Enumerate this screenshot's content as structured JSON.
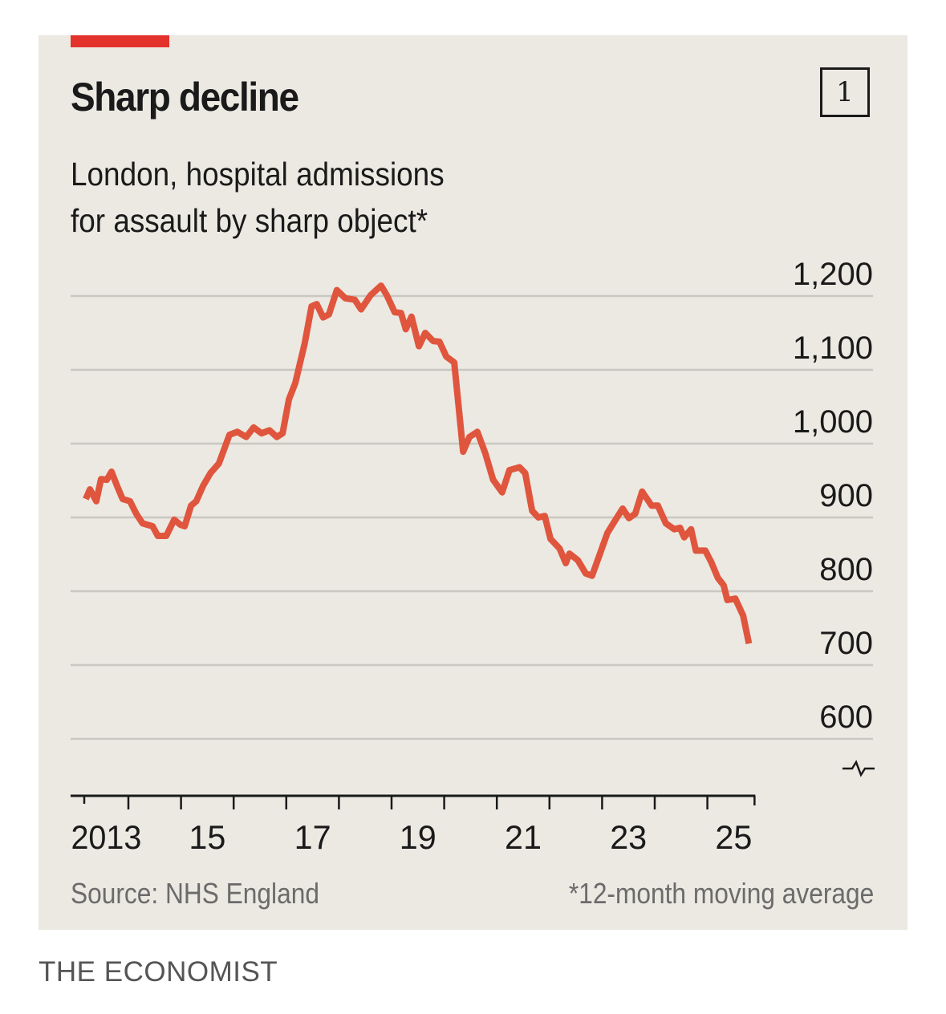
{
  "header": {
    "title": "Sharp decline",
    "subtitle_line1": "London, hospital admissions",
    "subtitle_line2": "for assault by sharp object*",
    "chart_number": "1"
  },
  "footer": {
    "source": "Source: NHS England",
    "footnote": "*12-month moving average",
    "brand": "THE ECONOMIST"
  },
  "colors": {
    "accent": "#e3322c",
    "line": "#e0553d",
    "background": "#ebe9e2",
    "grid": "#c9c7c0"
  },
  "chart_data": {
    "type": "line",
    "title": "Sharp decline",
    "subtitle": "London, hospital admissions for assault by sharp object*",
    "xlabel": "",
    "ylabel": "",
    "ylim": [
      600,
      1200
    ],
    "xlim": [
      2013.16,
      2025.85
    ],
    "yticks": [
      600,
      700,
      800,
      900,
      1000,
      1100,
      1200
    ],
    "ytick_labels": [
      "600",
      "700",
      "800",
      "900",
      "1,000",
      "1,100",
      "1,200"
    ],
    "y_axis_side": "right",
    "y_axis_break": true,
    "xticks": [
      2014,
      2015,
      2016,
      2017,
      2018,
      2019,
      2020,
      2021,
      2022,
      2023,
      2024,
      2025
    ],
    "xtick_labels": [
      {
        "label": "2013",
        "at": 2013.58
      },
      {
        "label": "15",
        "at": 2015.5
      },
      {
        "label": "17",
        "at": 2017.5
      },
      {
        "label": "19",
        "at": 2019.5
      },
      {
        "label": "21",
        "at": 2021.5
      },
      {
        "label": "23",
        "at": 2023.5
      },
      {
        "label": "25",
        "at": 2025.5
      }
    ],
    "grid": true,
    "legend": "none",
    "series": [
      {
        "name": "London admissions (12-month moving average)",
        "x": [
          2013.19,
          2013.27,
          2013.39,
          2013.48,
          2013.59,
          2013.68,
          2013.79,
          2013.89,
          2014.03,
          2014.15,
          2014.27,
          2014.46,
          2014.56,
          2014.72,
          2014.87,
          2014.99,
          2015.07,
          2015.19,
          2015.29,
          2015.42,
          2015.56,
          2015.72,
          2015.92,
          2016.07,
          2016.24,
          2016.38,
          2016.53,
          2016.68,
          2016.82,
          2016.93,
          2017.05,
          2017.17,
          2017.28,
          2017.35,
          2017.48,
          2017.58,
          2017.7,
          2017.81,
          2017.96,
          2018.12,
          2018.3,
          2018.42,
          2018.6,
          2018.8,
          2018.91,
          2019.06,
          2019.18,
          2019.27,
          2019.38,
          2019.52,
          2019.64,
          2019.79,
          2019.91,
          2020.04,
          2020.19,
          2020.36,
          2020.48,
          2020.63,
          2020.78,
          2020.93,
          2021.1,
          2021.24,
          2021.43,
          2021.54,
          2021.67,
          2021.79,
          2021.91,
          2022.02,
          2022.19,
          2022.31,
          2022.38,
          2022.54,
          2022.69,
          2022.81,
          2022.96,
          2023.1,
          2023.24,
          2023.39,
          2023.51,
          2023.63,
          2023.76,
          2023.94,
          2024.06,
          2024.21,
          2024.37,
          2024.48,
          2024.56,
          2024.69,
          2024.78,
          2024.96,
          2025.07,
          2025.2,
          2025.31,
          2025.38,
          2025.53,
          2025.68,
          2025.79
        ],
        "values": [
          925,
          938,
          922,
          952,
          951,
          962,
          942,
          925,
          922,
          905,
          892,
          888,
          875,
          875,
          897,
          890,
          888,
          916,
          922,
          943,
          960,
          973,
          1012,
          1016,
          1009,
          1022,
          1014,
          1018,
          1009,
          1014,
          1060,
          1082,
          1115,
          1136,
          1186,
          1189,
          1171,
          1175,
          1208,
          1197,
          1195,
          1182,
          1201,
          1214,
          1201,
          1178,
          1177,
          1155,
          1172,
          1132,
          1150,
          1139,
          1138,
          1118,
          1110,
          989,
          1009,
          1016,
          987,
          951,
          934,
          964,
          968,
          960,
          909,
          900,
          902,
          871,
          858,
          838,
          851,
          842,
          824,
          821,
          851,
          879,
          895,
          912,
          899,
          905,
          935,
          916,
          916,
          892,
          884,
          886,
          873,
          884,
          855,
          855,
          840,
          818,
          808,
          788,
          790,
          767,
          729
        ]
      }
    ]
  }
}
